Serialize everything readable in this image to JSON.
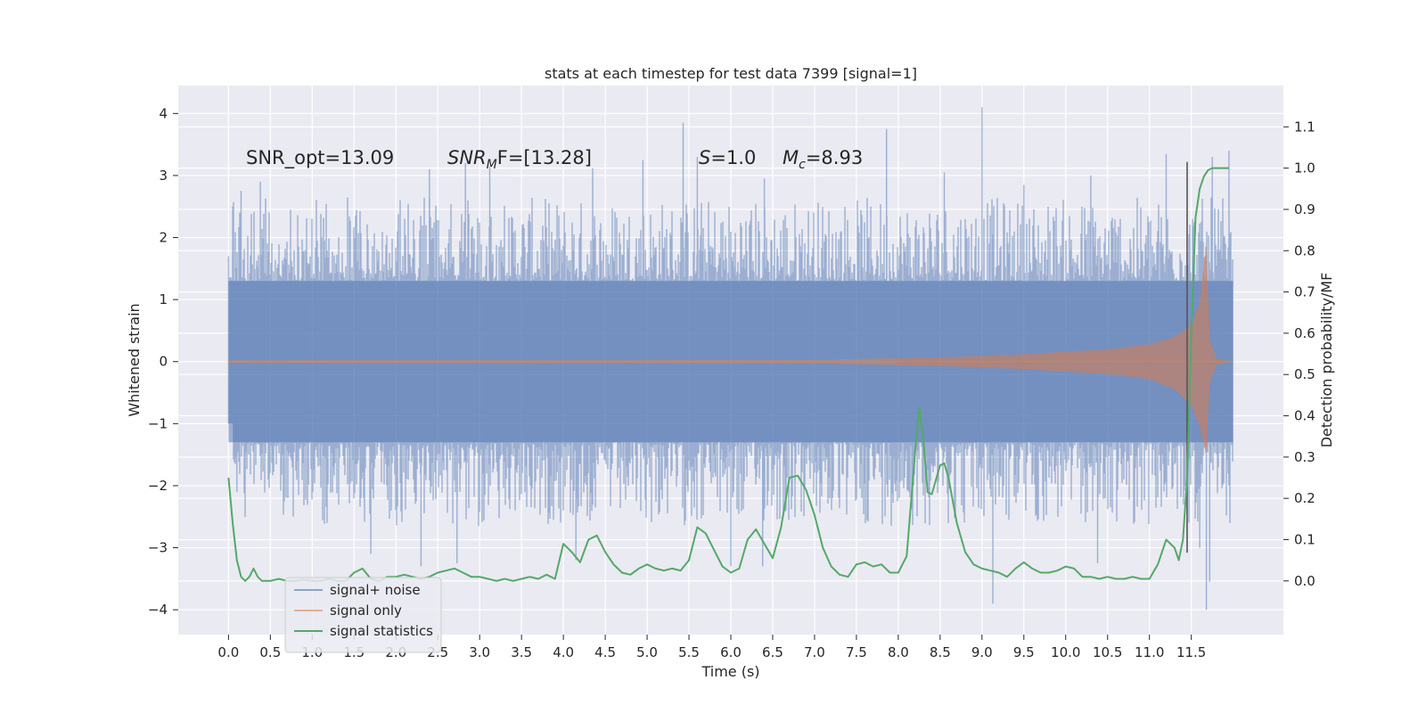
{
  "chart_data": {
    "type": "line",
    "title": "stats at each timestep for test data 7399 [signal=1]",
    "xlabel": "Time (s)",
    "ylabel": "Whitened strain",
    "y2label": "Detection probability/MF",
    "xlim": [
      -0.6,
      12.6
    ],
    "ylim": [
      -4.4,
      4.45
    ],
    "y2lim": [
      -0.13,
      1.2
    ],
    "x_ticks": [
      0.0,
      0.5,
      1.0,
      1.5,
      2.0,
      2.5,
      3.0,
      3.5,
      4.0,
      4.5,
      5.0,
      5.5,
      6.0,
      6.5,
      7.0,
      7.5,
      8.0,
      8.5,
      9.0,
      9.5,
      10.0,
      10.5,
      11.0,
      11.5
    ],
    "x_tick_labels": [
      "0.0",
      "0.5",
      "1.0",
      "1.5",
      "2.0",
      "2.5",
      "3.0",
      "3.5",
      "4.0",
      "4.5",
      "5.0",
      "5.5",
      "6.0",
      "6.5",
      "7.0",
      "7.5",
      "8.0",
      "8.5",
      "9.0",
      "9.5",
      "10.0",
      "10.5",
      "11.0",
      "11.5"
    ],
    "y_ticks": [
      -4,
      -3,
      -2,
      -1,
      0,
      1,
      2,
      3,
      4
    ],
    "y_tick_labels": [
      "−4",
      "−3",
      "−2",
      "−1",
      "0",
      "1",
      "2",
      "3",
      "4"
    ],
    "y2_ticks": [
      0.0,
      0.1,
      0.2,
      0.3,
      0.4,
      0.5,
      0.6,
      0.7,
      0.8,
      0.9,
      1.0,
      1.1
    ],
    "y2_tick_labels": [
      "0.0",
      "0.1",
      "0.2",
      "0.3",
      "0.4",
      "0.5",
      "0.6",
      "0.7",
      "0.8",
      "0.9",
      "1.0",
      "1.1"
    ],
    "grid": true,
    "legend_position": "lower-left",
    "annotations": {
      "snr_opt": "SNR_opt=13.09",
      "snr_mf_main": "SNR",
      "snr_mf_sub": "M",
      "snr_mf_rest": "F=[13.28]",
      "s_italic": "S",
      "s_rest": "=1.0",
      "mc_italic": "M",
      "mc_sub": "c",
      "mc_rest": "=8.93"
    },
    "series": [
      {
        "name": "signal+ noise",
        "color": "#4c72b0",
        "opacity": 0.5,
        "axis": "left",
        "kind": "noise-band",
        "x_range": [
          0.0,
          12.0
        ],
        "core_band": [
          -1.3,
          1.3
        ],
        "max_peaks": [
          [
            0.0,
            1.7
          ],
          [
            0.05,
            2.5
          ],
          [
            0.15,
            2.75
          ],
          [
            0.38,
            2.9
          ],
          [
            2.4,
            3.1
          ],
          [
            2.83,
            3.2
          ],
          [
            3.12,
            3.15
          ],
          [
            4.35,
            3.12
          ],
          [
            4.95,
            3.25
          ],
          [
            5.43,
            3.85
          ],
          [
            5.6,
            3.3
          ],
          [
            6.4,
            2.95
          ],
          [
            7.86,
            3.75
          ],
          [
            8.55,
            3.05
          ],
          [
            9.0,
            4.1
          ],
          [
            9.5,
            2.85
          ],
          [
            10.3,
            3.0
          ],
          [
            11.2,
            3.35
          ],
          [
            11.75,
            3.3
          ],
          [
            11.95,
            3.4
          ]
        ],
        "min_peaks": [
          [
            0.0,
            -1.0
          ],
          [
            0.1,
            -2.1
          ],
          [
            1.7,
            -3.1
          ],
          [
            2.3,
            -3.3
          ],
          [
            2.73,
            -3.25
          ],
          [
            4.15,
            -3.2
          ],
          [
            6.0,
            -3.3
          ],
          [
            6.38,
            -3.3
          ],
          [
            9.13,
            -3.9
          ],
          [
            10.38,
            -3.25
          ],
          [
            11.6,
            -3.0
          ],
          [
            11.68,
            -4.0
          ],
          [
            11.72,
            -3.55
          ],
          [
            11.95,
            -2.0
          ]
        ]
      },
      {
        "name": "signal only",
        "color": "#dd8452",
        "opacity": 0.5,
        "axis": "left",
        "kind": "chirp-envelope",
        "envelope_top": [
          [
            0.0,
            0.02
          ],
          [
            7.0,
            0.03
          ],
          [
            8.5,
            0.07
          ],
          [
            9.5,
            0.12
          ],
          [
            10.5,
            0.2
          ],
          [
            11.0,
            0.28
          ],
          [
            11.3,
            0.4
          ],
          [
            11.5,
            0.6
          ],
          [
            11.6,
            0.95
          ],
          [
            11.68,
            1.9
          ],
          [
            11.72,
            0.35
          ],
          [
            11.8,
            0.05
          ],
          [
            12.0,
            0.0
          ]
        ],
        "envelope_bottom": [
          [
            0.0,
            -0.02
          ],
          [
            7.0,
            -0.03
          ],
          [
            8.5,
            -0.07
          ],
          [
            9.5,
            -0.12
          ],
          [
            10.5,
            -0.2
          ],
          [
            11.0,
            -0.28
          ],
          [
            11.3,
            -0.45
          ],
          [
            11.5,
            -0.7
          ],
          [
            11.6,
            -1.05
          ],
          [
            11.68,
            -1.5
          ],
          [
            11.72,
            -0.35
          ],
          [
            11.8,
            -0.05
          ],
          [
            12.0,
            0.0
          ]
        ]
      },
      {
        "name": "signal statistics",
        "color": "#55a868",
        "opacity": 1.0,
        "axis": "right",
        "x": [
          0.0,
          0.05,
          0.1,
          0.15,
          0.2,
          0.25,
          0.3,
          0.35,
          0.4,
          0.45,
          0.5,
          0.6,
          0.7,
          0.8,
          0.9,
          1.0,
          1.1,
          1.2,
          1.3,
          1.4,
          1.5,
          1.6,
          1.7,
          1.8,
          1.9,
          2.0,
          2.1,
          2.2,
          2.3,
          2.4,
          2.5,
          2.6,
          2.7,
          2.8,
          2.9,
          3.0,
          3.1,
          3.2,
          3.3,
          3.4,
          3.5,
          3.6,
          3.7,
          3.8,
          3.9,
          4.0,
          4.1,
          4.2,
          4.3,
          4.4,
          4.5,
          4.6,
          4.7,
          4.8,
          4.9,
          5.0,
          5.1,
          5.2,
          5.3,
          5.4,
          5.5,
          5.6,
          5.7,
          5.8,
          5.9,
          6.0,
          6.1,
          6.2,
          6.3,
          6.4,
          6.5,
          6.6,
          6.7,
          6.8,
          6.9,
          7.0,
          7.1,
          7.2,
          7.3,
          7.4,
          7.5,
          7.6,
          7.7,
          7.8,
          7.9,
          8.0,
          8.1,
          8.2,
          8.25,
          8.3,
          8.35,
          8.4,
          8.5,
          8.55,
          8.6,
          8.7,
          8.8,
          8.9,
          9.0,
          9.1,
          9.2,
          9.3,
          9.4,
          9.5,
          9.6,
          9.7,
          9.8,
          9.9,
          10.0,
          10.1,
          10.2,
          10.3,
          10.4,
          10.5,
          10.6,
          10.7,
          10.8,
          10.9,
          11.0,
          11.1,
          11.2,
          11.3,
          11.35,
          11.4,
          11.45,
          11.5,
          11.55,
          11.6,
          11.65,
          11.7,
          11.75,
          11.8,
          11.9,
          11.95
        ],
        "y": [
          0.25,
          0.14,
          0.05,
          0.01,
          0.0,
          0.01,
          0.03,
          0.01,
          0.0,
          0.0,
          0.0,
          0.005,
          0.0,
          0.0,
          0.003,
          0.0,
          0.0,
          0.005,
          0.0,
          0.0,
          0.02,
          0.03,
          0.005,
          0.0,
          0.01,
          0.01,
          0.015,
          0.01,
          0.005,
          0.01,
          0.02,
          0.025,
          0.03,
          0.02,
          0.01,
          0.01,
          0.005,
          0.0,
          0.005,
          0.0,
          0.005,
          0.01,
          0.005,
          0.015,
          0.005,
          0.09,
          0.07,
          0.045,
          0.1,
          0.11,
          0.07,
          0.04,
          0.02,
          0.015,
          0.03,
          0.04,
          0.03,
          0.025,
          0.03,
          0.025,
          0.05,
          0.13,
          0.115,
          0.075,
          0.035,
          0.02,
          0.03,
          0.1,
          0.125,
          0.09,
          0.055,
          0.13,
          0.25,
          0.255,
          0.22,
          0.16,
          0.08,
          0.035,
          0.015,
          0.01,
          0.04,
          0.045,
          0.035,
          0.04,
          0.02,
          0.02,
          0.06,
          0.31,
          0.42,
          0.34,
          0.215,
          0.21,
          0.28,
          0.285,
          0.25,
          0.14,
          0.07,
          0.04,
          0.03,
          0.025,
          0.02,
          0.01,
          0.03,
          0.045,
          0.03,
          0.02,
          0.02,
          0.025,
          0.035,
          0.03,
          0.01,
          0.01,
          0.005,
          0.01,
          0.005,
          0.005,
          0.01,
          0.005,
          0.005,
          0.04,
          0.1,
          0.08,
          0.05,
          0.1,
          0.25,
          0.6,
          0.88,
          0.95,
          0.98,
          0.995,
          1.0,
          1.0,
          1.0,
          1.0
        ]
      }
    ],
    "vertical_line": {
      "x": 11.45,
      "y_range": [
        -3.08,
        3.22
      ],
      "color": "#555555"
    }
  }
}
